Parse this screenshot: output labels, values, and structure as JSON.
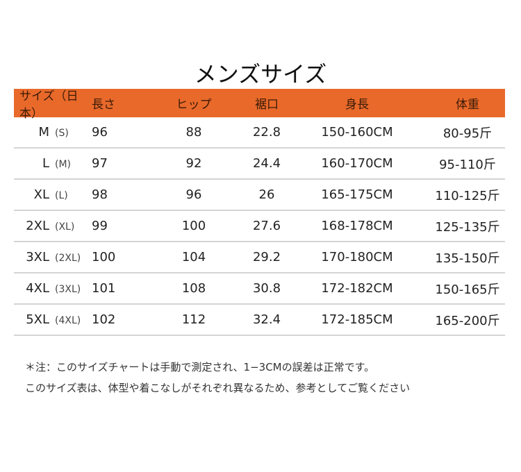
{
  "title": "メンズサイズ",
  "accent_color": "#E8692A",
  "headers": [
    "サイズ（日本）",
    "長さ",
    "ヒップ",
    "裾口",
    "身長",
    "体重"
  ],
  "rows": [
    {
      "size": "M",
      "jp": "(S)",
      "length": "96",
      "hip": "88",
      "hem": "22.8",
      "height": "150-160CM",
      "weight": "80-95斤"
    },
    {
      "size": "L",
      "jp": "(M)",
      "length": "97",
      "hip": "92",
      "hem": "24.4",
      "height": "160-170CM",
      "weight": "95-110斤"
    },
    {
      "size": "XL",
      "jp": "(L)",
      "length": "98",
      "hip": "96",
      "hem": "26",
      "height": "165-175CM",
      "weight": "110-125斤"
    },
    {
      "size": "2XL",
      "jp": "(XL)",
      "length": "99",
      "hip": "100",
      "hem": "27.6",
      "height": "168-178CM",
      "weight": "125-135斤"
    },
    {
      "size": "3XL",
      "jp": "(2XL)",
      "length": "100",
      "hip": "104",
      "hem": "29.2",
      "height": "170-180CM",
      "weight": "135-150斤"
    },
    {
      "size": "4XL",
      "jp": "(3XL)",
      "length": "101",
      "hip": "108",
      "hem": "30.8",
      "height": "172-182CM",
      "weight": "150-165斤"
    },
    {
      "size": "5XL",
      "jp": "(4XL)",
      "length": "102",
      "hip": "112",
      "hem": "32.4",
      "height": "172-185CM",
      "weight": "165-200斤"
    }
  ],
  "notes": [
    "＊注：このサイズチャートは手動で測定され、1−3CMの誤差は正常です。",
    "このサイズ表は、体型や着こなしがそれぞれ異なるため、参考としてご覧ください"
  ]
}
